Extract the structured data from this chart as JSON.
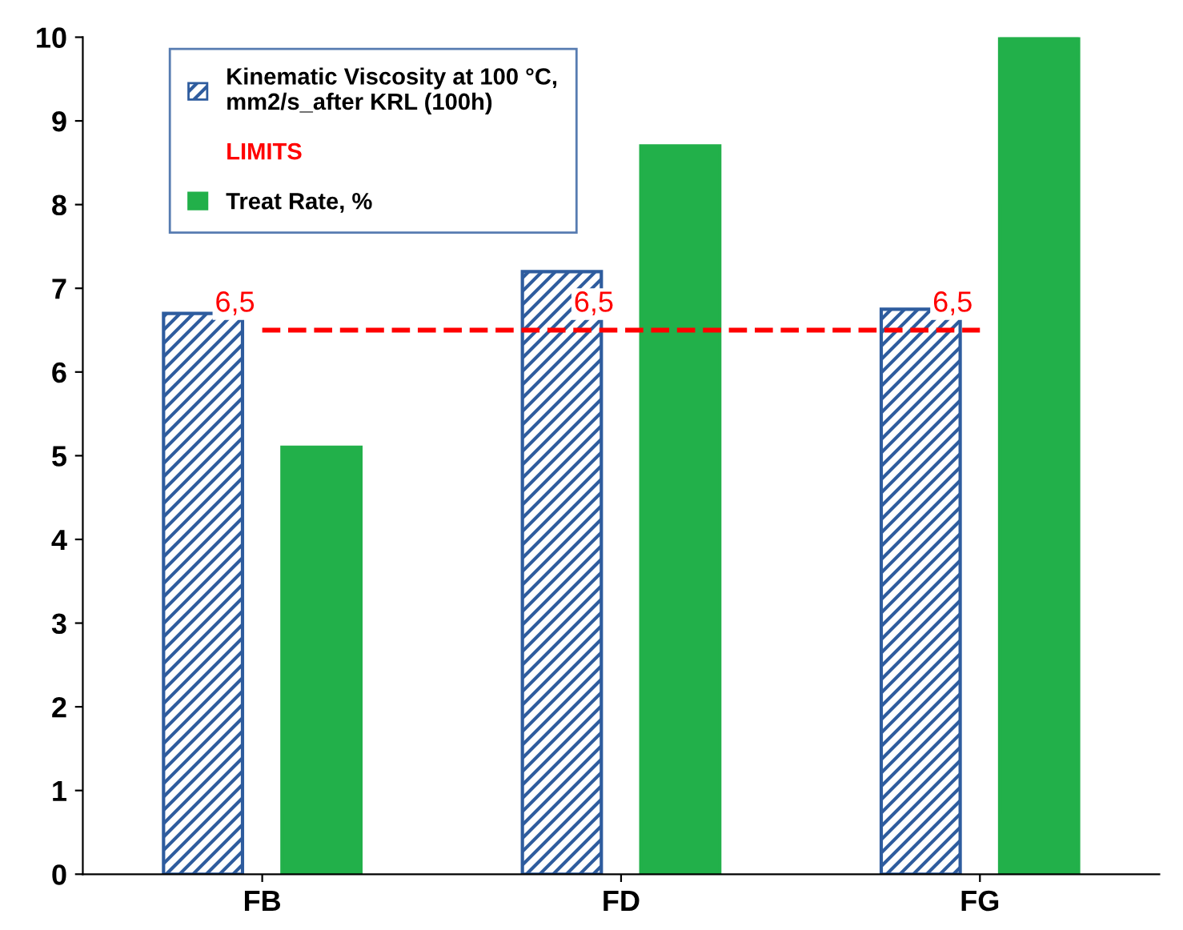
{
  "chart_data": {
    "type": "bar",
    "categories": [
      "FB",
      "FD",
      "FG"
    ],
    "series": [
      {
        "name": "Kinematic Viscosity at 100 °C, mm2/s_after KRL (100h)",
        "color": "#2e5c9e",
        "values": [
          6.7,
          7.2,
          6.75
        ]
      },
      {
        "name": "LIMITS",
        "type": "line",
        "color": "#ff0000",
        "values": [
          6.5,
          6.5,
          6.5
        ],
        "value_labels": [
          "6,5",
          "6,5",
          "6,5"
        ],
        "line_style": "dashed",
        "marker": "none"
      },
      {
        "name": "Treat Rate, %",
        "color": "#22b04a",
        "values": [
          5.1,
          8.7,
          10
        ]
      }
    ],
    "ylim": [
      0,
      10
    ],
    "yticks": [
      0,
      1,
      2,
      3,
      4,
      5,
      6,
      7,
      8,
      9,
      10
    ],
    "grid": false,
    "legend": "top left"
  }
}
